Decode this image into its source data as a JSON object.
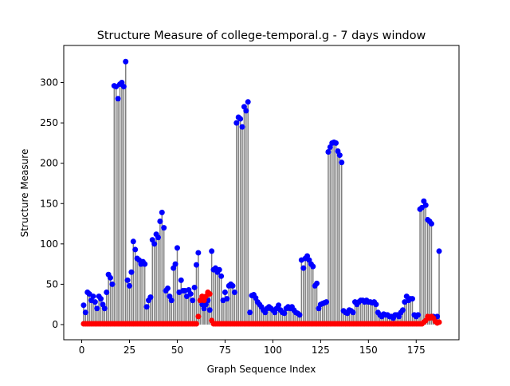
{
  "chart_data": {
    "type": "stem",
    "title": "Structure Measure of college-temporal.g - 7 days window",
    "xlabel": "Graph Sequence Index",
    "ylabel": "Structure Measure",
    "x": [
      1,
      2,
      3,
      4,
      5,
      6,
      7,
      8,
      9,
      10,
      11,
      12,
      13,
      14,
      15,
      16,
      17,
      18,
      19,
      20,
      21,
      22,
      23,
      24,
      25,
      26,
      27,
      28,
      29,
      30,
      31,
      32,
      33,
      34,
      35,
      36,
      37,
      38,
      39,
      40,
      41,
      42,
      43,
      44,
      45,
      46,
      47,
      48,
      49,
      50,
      51,
      52,
      53,
      54,
      55,
      56,
      57,
      58,
      59,
      60,
      61,
      62,
      63,
      64,
      65,
      66,
      67,
      68,
      69,
      70,
      71,
      72,
      73,
      74,
      75,
      76,
      77,
      78,
      79,
      80,
      81,
      82,
      83,
      84,
      85,
      86,
      87,
      88,
      89,
      90,
      91,
      92,
      93,
      94,
      95,
      96,
      97,
      98,
      99,
      100,
      101,
      102,
      103,
      104,
      105,
      106,
      107,
      108,
      109,
      110,
      111,
      112,
      113,
      114,
      115,
      116,
      117,
      118,
      119,
      120,
      121,
      122,
      123,
      124,
      125,
      126,
      127,
      128,
      129,
      130,
      131,
      132,
      133,
      134,
      135,
      136,
      137,
      138,
      139,
      140,
      141,
      142,
      143,
      144,
      145,
      146,
      147,
      148,
      149,
      150,
      151,
      152,
      153,
      154,
      155,
      156,
      157,
      158,
      159,
      160,
      161,
      162,
      163,
      164,
      165,
      166,
      167,
      168,
      169,
      170,
      171,
      172,
      173,
      174,
      175,
      176,
      177,
      178,
      179,
      180,
      181,
      182,
      183,
      184,
      185,
      186,
      187
    ],
    "series": [
      {
        "color": "#0000ff",
        "values": [
          24,
          15,
          40,
          38,
          30,
          35,
          28,
          20,
          35,
          32,
          25,
          20,
          40,
          62,
          58,
          50,
          296,
          295,
          280,
          298,
          300,
          295,
          326,
          55,
          48,
          65,
          103,
          93,
          82,
          80,
          75,
          78,
          75,
          22,
          30,
          34,
          105,
          100,
          112,
          108,
          128,
          139,
          120,
          42,
          45,
          35,
          30,
          70,
          75,
          95,
          40,
          55,
          42,
          42,
          35,
          43,
          38,
          30,
          46,
          74,
          89,
          30,
          25,
          20,
          25,
          30,
          18,
          91,
          68,
          70,
          65,
          68,
          60,
          30,
          40,
          32,
          48,
          50,
          48,
          40,
          250,
          257,
          255,
          245,
          270,
          265,
          276,
          15,
          36,
          37,
          33,
          28,
          25,
          22,
          18,
          15,
          20,
          22,
          20,
          18,
          15,
          20,
          24,
          18,
          15,
          14,
          20,
          22,
          20,
          22,
          18,
          15,
          14,
          12,
          80,
          70,
          82,
          85,
          80,
          75,
          72,
          48,
          51,
          20,
          25,
          26,
          27,
          28,
          214,
          220,
          225,
          226,
          225,
          215,
          210,
          201,
          17,
          15,
          14,
          18,
          17,
          15,
          28,
          25,
          28,
          30,
          30,
          28,
          30,
          28,
          28,
          27,
          28,
          25,
          15,
          12,
          10,
          13,
          12,
          12,
          10,
          10,
          8,
          12,
          12,
          10,
          15,
          18,
          28,
          35,
          30,
          32,
          32,
          12,
          10,
          12,
          143,
          145,
          153,
          148,
          130,
          128,
          125,
          10,
          8,
          10,
          91
        ]
      },
      {
        "color": "#ff0000",
        "values": [
          1,
          1,
          1,
          1,
          1,
          1,
          1,
          1,
          1,
          1,
          1,
          1,
          1,
          1,
          1,
          1,
          1,
          1,
          1,
          1,
          1,
          1,
          1,
          1,
          1,
          1,
          1,
          1,
          1,
          1,
          1,
          1,
          1,
          1,
          1,
          1,
          1,
          1,
          1,
          1,
          1,
          1,
          1,
          1,
          1,
          1,
          1,
          1,
          1,
          1,
          1,
          1,
          1,
          1,
          1,
          1,
          1,
          1,
          1,
          1,
          10,
          30,
          35,
          30,
          35,
          40,
          38,
          5,
          1,
          1,
          1,
          1,
          1,
          1,
          1,
          1,
          1,
          1,
          1,
          1,
          1,
          1,
          1,
          1,
          1,
          1,
          1,
          1,
          1,
          1,
          1,
          1,
          1,
          1,
          1,
          1,
          1,
          1,
          1,
          1,
          1,
          1,
          1,
          1,
          1,
          1,
          1,
          1,
          1,
          1,
          1,
          1,
          1,
          1,
          1,
          1,
          1,
          1,
          1,
          1,
          1,
          1,
          1,
          1,
          1,
          1,
          1,
          1,
          1,
          1,
          1,
          1,
          1,
          1,
          1,
          1,
          1,
          1,
          1,
          1,
          1,
          1,
          1,
          1,
          1,
          1,
          1,
          1,
          1,
          1,
          1,
          1,
          1,
          1,
          1,
          1,
          1,
          1,
          1,
          1,
          1,
          1,
          1,
          1,
          1,
          1,
          1,
          1,
          1,
          1,
          1,
          1,
          1,
          1,
          1,
          1,
          1,
          1,
          3,
          5,
          10,
          8,
          10,
          8,
          4,
          2,
          3
        ]
      }
    ],
    "stem_color": "#808080",
    "xlim": [
      -9.4,
      197.4
    ],
    "xticks": [
      0,
      25,
      50,
      75,
      100,
      125,
      150,
      175
    ],
    "ylim": [
      -18.8,
      346
    ],
    "yticks": [
      0,
      50,
      100,
      150,
      200,
      250,
      300
    ]
  }
}
